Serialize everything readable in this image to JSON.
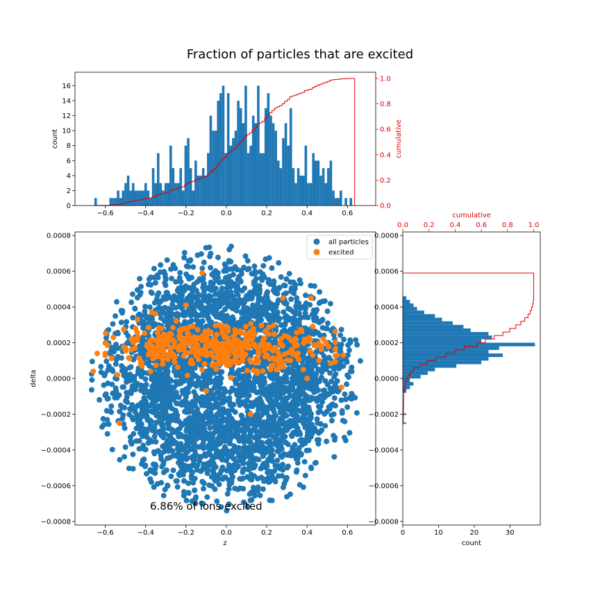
{
  "suptitle": "Fraction of particles that are excited",
  "chart_data": [
    {
      "id": "scatter",
      "type": "scatter",
      "xlabel": "z",
      "ylabel": "delta",
      "xlim": [
        -0.75,
        0.74
      ],
      "ylim": [
        -0.00082,
        0.00082
      ],
      "xticks": [
        -0.6,
        -0.4,
        -0.2,
        0.0,
        0.2,
        0.4,
        0.6
      ],
      "xtick_labels": [
        "−0.6",
        "−0.4",
        "−0.2",
        "0.0",
        "0.2",
        "0.4",
        "0.6"
      ],
      "yticks": [
        -0.0008,
        -0.0006,
        -0.0004,
        -0.0002,
        0.0,
        0.0002,
        0.0004,
        0.0006,
        0.0008
      ],
      "ytick_labels": [
        "−0.0008",
        "−0.0006",
        "−0.0004",
        "−0.0002",
        "0.0000",
        "0.0002",
        "0.0004",
        "0.0006",
        "0.0008"
      ],
      "legend": {
        "placement": "top-right",
        "entries": [
          "all particles",
          "excited"
        ]
      },
      "annotation": "6.86% of ions excited",
      "series": [
        {
          "name": "all particles",
          "color": "#1f77b4",
          "distribution": "filled ellipse of ~7000 points",
          "center": [
            0.0,
            0.0
          ],
          "semi_axes": [
            0.67,
            0.00074
          ]
        },
        {
          "name": "excited",
          "color": "#ff7f0e",
          "distribution": "band of ~480 points",
          "z_range": [
            -0.66,
            0.58
          ],
          "delta_center": 0.00018,
          "delta_spread": 6e-05,
          "points": [
            [
              -0.66,
              4e-05
            ],
            [
              -0.64,
              0.00014
            ],
            [
              -0.54,
              2e-05
            ],
            [
              -0.53,
              -0.00025
            ],
            [
              -0.56,
              0.00023
            ],
            [
              -0.45,
              0.00028
            ],
            [
              -0.44,
              0.00033
            ],
            [
              -0.37,
              0.00037
            ],
            [
              -0.2,
              0.00041
            ],
            [
              -0.12,
              0.00059
            ],
            [
              -0.1,
              -7e-05
            ],
            [
              0.12,
              -0.0002
            ],
            [
              0.28,
              0.00045
            ],
            [
              0.42,
              0.00045
            ],
            [
              0.57,
              -5e-05
            ],
            [
              0.55,
              0.00013
            ],
            [
              0.58,
              0.00013
            ],
            [
              0.48,
              0.00022
            ],
            [
              -0.42,
              7e-05
            ],
            [
              0.4,
              0.0
            ]
          ]
        }
      ]
    },
    {
      "id": "top_hist",
      "type": "bar",
      "xlabel": "",
      "ylabel": "count",
      "ylabel_right": "cumulative",
      "xlim": [
        -0.75,
        0.74
      ],
      "ylim": [
        0,
        17.8
      ],
      "y2lim": [
        0,
        1.0
      ],
      "xticks": [
        -0.6,
        -0.4,
        -0.2,
        0.0,
        0.2,
        0.4,
        0.6
      ],
      "xtick_labels": [
        "−0.6",
        "−0.4",
        "−0.2",
        "0.0",
        "0.2",
        "0.4",
        "0.6"
      ],
      "yticks": [
        0,
        2,
        4,
        6,
        8,
        10,
        12,
        14,
        16
      ],
      "yticks_right": [
        0.0,
        0.2,
        0.4,
        0.6,
        0.8,
        1.0
      ],
      "ytick_labels_right": [
        "0.0",
        "0.2",
        "0.4",
        "0.6",
        "0.8",
        "1.0"
      ],
      "bin_start": -0.654,
      "bin_width": 0.0124,
      "counts": [
        1,
        0,
        0,
        0,
        0,
        0,
        1,
        1,
        1,
        2,
        1,
        2,
        3,
        4,
        2,
        3,
        2,
        2,
        2,
        2,
        3,
        2,
        1,
        5,
        3,
        7,
        3,
        2,
        3,
        3,
        8,
        5,
        3,
        3,
        5,
        2,
        8,
        9,
        5,
        2,
        6,
        4,
        4,
        5,
        4,
        7,
        12,
        10,
        10,
        14,
        15,
        16,
        7,
        15,
        8,
        9,
        10,
        14,
        13,
        11,
        16,
        7,
        8,
        12,
        11,
        16,
        7,
        7,
        13,
        15,
        12,
        11,
        10,
        6,
        5,
        9,
        11,
        8,
        13,
        5,
        3,
        5,
        4,
        4,
        8,
        3,
        3,
        7,
        6,
        6,
        4,
        5,
        3,
        5,
        6,
        2,
        1,
        1,
        2,
        0,
        1,
        0,
        1,
        0
      ],
      "series": [
        {
          "name": "count",
          "color": "#1f77b4"
        },
        {
          "name": "cumulative",
          "color": "#e00000"
        }
      ]
    },
    {
      "id": "side_hist",
      "type": "bar",
      "orientation": "horizontal",
      "xlabel": "count",
      "xlabel_top": "cumulative",
      "xlim": [
        0,
        38.5
      ],
      "x2lim": [
        0,
        1.05
      ],
      "ylim": [
        -0.00082,
        0.00082
      ],
      "xticks": [
        0,
        10,
        20,
        30
      ],
      "xticks_top": [
        0.0,
        0.2,
        0.4,
        0.6,
        0.8,
        1.0
      ],
      "xtick_labels_top": [
        "0.0",
        "0.2",
        "0.4",
        "0.6",
        "0.8",
        "1.0"
      ],
      "yticks": [
        -0.0008,
        -0.0006,
        -0.0004,
        -0.0002,
        0.0,
        0.0002,
        0.0004,
        0.0006,
        0.0008
      ],
      "ytick_labels": [
        "−0.0008",
        "−0.0006",
        "−0.0004",
        "−0.0002",
        "0.0000",
        "0.0002",
        "0.0004",
        "0.0006",
        "0.0008"
      ],
      "bins": [
        [
          -0.000254,
          -0.000246,
          1
        ],
        [
          -0.000204,
          -0.000196,
          1
        ],
        [
          -8e-05,
          -6e-05,
          1
        ],
        [
          -6e-05,
          -4e-05,
          2
        ],
        [
          -4e-05,
          -2e-05,
          3
        ],
        [
          -2e-05,
          0.0,
          2
        ],
        [
          0.0,
          2e-05,
          5
        ],
        [
          2e-05,
          4e-05,
          7
        ],
        [
          4e-05,
          6e-05,
          9
        ],
        [
          6e-05,
          8e-05,
          15
        ],
        [
          8e-05,
          0.0001,
          22
        ],
        [
          0.0001,
          0.00012,
          24
        ],
        [
          0.00012,
          0.00014,
          28
        ],
        [
          0.00014,
          0.00016,
          24
        ],
        [
          0.00016,
          0.00018,
          27
        ],
        [
          0.00018,
          0.0002,
          37
        ],
        [
          0.0002,
          0.00022,
          22
        ],
        [
          0.00022,
          0.00024,
          25
        ],
        [
          0.00024,
          0.00026,
          24
        ],
        [
          0.00026,
          0.00028,
          19
        ],
        [
          0.00028,
          0.0003,
          17
        ],
        [
          0.0003,
          0.00032,
          14
        ],
        [
          0.00032,
          0.00034,
          11
        ],
        [
          0.00034,
          0.00036,
          9
        ],
        [
          0.00036,
          0.00038,
          6
        ],
        [
          0.00038,
          0.0004,
          4
        ],
        [
          0.0004,
          0.00042,
          3
        ],
        [
          0.00042,
          0.00044,
          2
        ],
        [
          0.00044,
          0.00046,
          1
        ]
      ],
      "cumulative_top": 0.00059,
      "series": [
        {
          "name": "count",
          "color": "#1f77b4"
        },
        {
          "name": "cumulative",
          "color": "#e00000"
        }
      ]
    }
  ]
}
